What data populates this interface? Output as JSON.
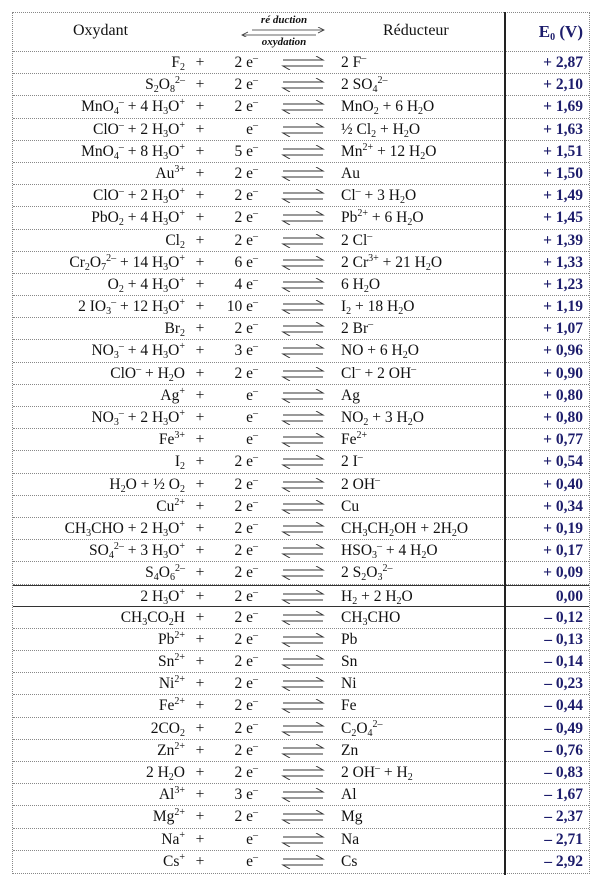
{
  "header": {
    "oxidant": "Oxydant",
    "reduction": "ré duction",
    "oxidation": "oxydation",
    "reductant": "Réducteur",
    "e0": "E_{0} (V)"
  },
  "colors": {
    "e0_text": "#1c1c6b",
    "divider": "#222222"
  },
  "arrow_icon": "equilibrium-harpoons",
  "rows": [
    {
      "ox": "F_{2}",
      "e": "2 e^{–}",
      "red": "2 F^{–}",
      "e0": "+ 2,87"
    },
    {
      "ox": "S_{2}O_{8}^{2–}",
      "e": "2 e^{–}",
      "red": "2 SO_{4}^{2–}",
      "e0": "+ 2,10"
    },
    {
      "ox": "MnO_{4}^{–} + 4 H_{3}O^{+}",
      "e": "2 e^{–}",
      "red": "MnO_{2} + 6 H_{2}O",
      "e0": "+ 1,69"
    },
    {
      "ox": "ClO^{–} + 2 H_{3}O^{+}",
      "e": "e^{–}",
      "red": "½ Cl_{2} + H_{2}O",
      "e0": "+ 1,63"
    },
    {
      "ox": "MnO_{4}^{–} + 8 H_{3}O^{+}",
      "e": "5 e^{–}",
      "red": "Mn^{2+} + 12 H_{2}O",
      "e0": "+ 1,51"
    },
    {
      "ox": "Au^{3+}",
      "e": "2 e^{–}",
      "red": "Au",
      "e0": "+ 1,50"
    },
    {
      "ox": "ClO^{–} + 2 H_{3}O^{+}",
      "e": "2 e^{–}",
      "red": "Cl^{–} + 3 H_{2}O",
      "e0": "+ 1,49"
    },
    {
      "ox": "PbO_{2} + 4 H_{3}O^{+}",
      "e": "2 e^{–}",
      "red": "Pb^{2+} + 6 H_{2}O",
      "e0": "+ 1,45"
    },
    {
      "ox": "Cl_{2}",
      "e": "2 e^{–}",
      "red": "2 Cl^{–}",
      "e0": "+ 1,39"
    },
    {
      "ox": "Cr_{2}O_{7}^{2–} + 14 H_{3}O^{+}",
      "e": "6 e^{–}",
      "red": "2 Cr^{3+} + 21 H_{2}O",
      "e0": "+ 1,33"
    },
    {
      "ox": "O_{2} + 4 H_{3}O^{+}",
      "e": "4 e^{–}",
      "red": "6 H_{2}O",
      "e0": "+ 1,23"
    },
    {
      "ox": "2 IO_{3}^{–} + 12 H_{3}O^{+}",
      "e": "10 e^{–}",
      "red": "I_{2} + 18 H_{2}O",
      "e0": "+ 1,19"
    },
    {
      "ox": "Br_{2}",
      "e": "2 e^{–}",
      "red": "2 Br^{–}",
      "e0": "+ 1,07"
    },
    {
      "ox": "NO_{3}^{–} + 4 H_{3}O^{+}",
      "e": "3 e^{–}",
      "red": "NO + 6 H_{2}O",
      "e0": "+ 0,96"
    },
    {
      "ox": "ClO^{–} + H_{2}O",
      "e": "2 e^{–}",
      "red": "Cl^{–} + 2 OH^{–}",
      "e0": "+ 0,90"
    },
    {
      "ox": "Ag^{+}",
      "e": "e^{–}",
      "red": "Ag",
      "e0": "+ 0,80"
    },
    {
      "ox": "NO_{3}^{–} + 2 H_{3}O^{+}",
      "e": "e^{–}",
      "red": "NO_{2} + 3 H_{2}O",
      "e0": "+ 0,80"
    },
    {
      "ox": "Fe^{3+}",
      "e": "e^{–}",
      "red": "Fe^{2+}",
      "e0": "+ 0,77"
    },
    {
      "ox": "I_{2}",
      "e": "2 e^{–}",
      "red": "2 I^{–}",
      "e0": "+ 0,54"
    },
    {
      "ox": "H_{2}O + ½ O_{2}",
      "e": "2 e^{–}",
      "red": "2 OH^{–}",
      "e0": "+ 0,40"
    },
    {
      "ox": "Cu^{2+}",
      "e": "2 e^{–}",
      "red": "Cu",
      "e0": "+ 0,34"
    },
    {
      "ox": "CH_{3}CHO + 2 H_{3}O^{+}",
      "e": "2 e^{–}",
      "red": "CH_{3}CH_{2}OH + 2H_{2}O",
      "e0": "+ 0,19"
    },
    {
      "ox": "SO_{4}^{2–} + 3 H_{3}O^{+}",
      "e": "2 e^{–}",
      "red": "HSO_{3}^{–} + 4 H_{2}O",
      "e0": "+ 0,17"
    },
    {
      "ox": "S_{4}O_{6}^{2–}",
      "e": "2 e^{–}",
      "red": "2 S_{2}O_{3}^{2–}",
      "e0": "+ 0,09"
    },
    {
      "ox": "2 H_{3}O^{+}",
      "e": "2 e^{–}",
      "red": "H_{2} + 2 H_{2}O",
      "e0": "0,00",
      "solid": true
    },
    {
      "ox": "CH_{3}CO_{2}H",
      "e": "2 e^{–}",
      "red": "CH_{3}CHO",
      "e0": "– 0,12"
    },
    {
      "ox": "Pb^{2+}",
      "e": "2 e^{–}",
      "red": "Pb",
      "e0": "– 0,13"
    },
    {
      "ox": "Sn^{2+}",
      "e": "2 e^{–}",
      "red": "Sn",
      "e0": "– 0,14"
    },
    {
      "ox": "Ni^{2+}",
      "e": "2 e^{–}",
      "red": "Ni",
      "e0": "– 0,23"
    },
    {
      "ox": "Fe^{2+}",
      "e": "2 e^{–}",
      "red": "Fe",
      "e0": "– 0,44"
    },
    {
      "ox": "2CO_{2}",
      "e": "2 e^{–}",
      "red": "C_{2}O_{4}^{2–}",
      "e0": "– 0,49"
    },
    {
      "ox": "Zn^{2+}",
      "e": "2 e^{–}",
      "red": "Zn",
      "e0": "– 0,76"
    },
    {
      "ox": "2 H_{2}O",
      "e": "2 e^{–}",
      "red": "2 OH^{–} + H_{2}",
      "e0": "– 0,83"
    },
    {
      "ox": "Al^{3+}",
      "e": "3 e^{–}",
      "red": "Al",
      "e0": "– 1,67"
    },
    {
      "ox": "Mg^{2+}",
      "e": "2 e^{–}",
      "red": "Mg",
      "e0": "– 2,37"
    },
    {
      "ox": "Na^{+}",
      "e": "e^{–}",
      "red": "Na",
      "e0": "– 2,71"
    },
    {
      "ox": "Cs^{+}",
      "e": "e^{–}",
      "red": "Cs",
      "e0": "– 2,92"
    }
  ]
}
